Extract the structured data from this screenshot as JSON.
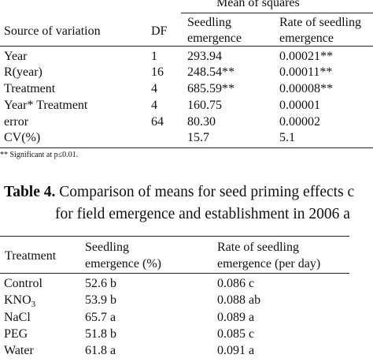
{
  "anova": {
    "header": {
      "mean_of_squares": "Mean of squares",
      "source": "Source  of variation",
      "df": "DF",
      "seedling_line1": "Seedling",
      "seedling_line2": "emergence",
      "rate_line1": "Rate of seedling",
      "rate_line2": "emergence"
    },
    "rows": [
      {
        "source": "Year",
        "df": "1",
        "seedling": "293.94",
        "rate": "0.00021**"
      },
      {
        "source": "R(year)",
        "df": "16",
        "seedling": "248.54**",
        "rate": "0.00011**"
      },
      {
        "source": "Treatment",
        "df": "4",
        "seedling": "685.59**",
        "rate": "0.00008**"
      },
      {
        "source": "Year* Treatment",
        "df": "4",
        "seedling": "160.75",
        "rate": "0.00001"
      },
      {
        "source": "error",
        "df": "64",
        "seedling": "80.30",
        "rate": "0.00002"
      },
      {
        "source": "CV(%)",
        "df": "",
        "seedling": "15.7",
        "rate": "5.1"
      }
    ],
    "footnote": "** Significant at p≤0.01."
  },
  "table4": {
    "label": "Table 4.",
    "caption_line1": "Comparison of means for seed priming effects c",
    "caption_line2": "for  field emergence and establishment in 2006 a",
    "header": {
      "treatment": "Treatment",
      "seedling_line1": "Seedling",
      "seedling_line2": "emergence  (%)",
      "rate_line1": "Rate of seedling",
      "rate_line2": "emergence (per day)"
    },
    "rows": [
      {
        "treatment": "Control",
        "treatment_sub": "",
        "seedling": "52.6 b",
        "rate": "0.086 c"
      },
      {
        "treatment": "KNO",
        "treatment_sub": "3",
        "seedling": "53.9 b",
        "rate": "0.088 ab"
      },
      {
        "treatment": "NaCl",
        "treatment_sub": "",
        "seedling": "65.7 a",
        "rate": "0.089 a"
      },
      {
        "treatment": "PEG",
        "treatment_sub": "",
        "seedling": "51.8 b",
        "rate": "0.085 c"
      },
      {
        "treatment": "Water",
        "treatment_sub": "",
        "seedling": "61.8 a",
        "rate": "0.091 a"
      }
    ]
  }
}
